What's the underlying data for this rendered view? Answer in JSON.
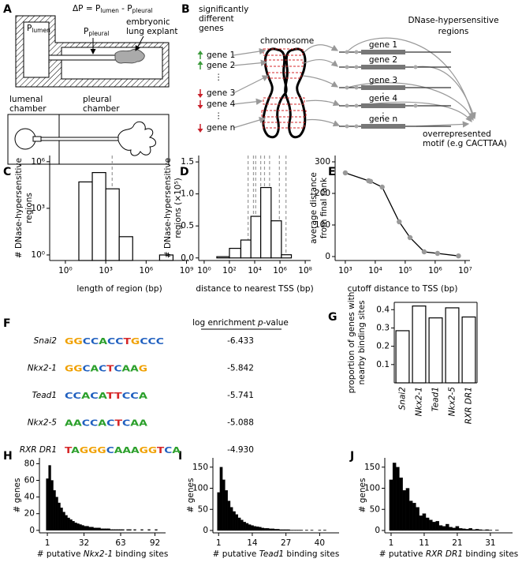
{
  "panel_labels": [
    "A",
    "B",
    "C",
    "D",
    "E",
    "F",
    "G",
    "H",
    "I",
    "J"
  ],
  "panel_a": {
    "equation": [
      "ΔP = P",
      "lumen",
      " - P",
      "pleural"
    ],
    "p_lumen": [
      "P",
      "lumen"
    ],
    "p_pleural": [
      "P",
      "pleural"
    ],
    "explant_label": [
      "embryonic",
      "lung explant"
    ],
    "lumenal_chamber": [
      "lumenal",
      "chamber"
    ],
    "pleural_chamber": [
      "pleural",
      "chamber"
    ]
  },
  "panel_b": {
    "genes_title": [
      "significantly",
      "different",
      "genes"
    ],
    "chromosome": "chromosome",
    "regions_title": [
      "DNase-hypersensitive",
      "regions"
    ],
    "genes": [
      {
        "label": "gene 1",
        "direction": "up"
      },
      {
        "label": "gene 2",
        "direction": "up"
      },
      {
        "label": "⋮",
        "direction": null
      },
      {
        "label": "gene 3",
        "direction": "down"
      },
      {
        "label": "gene 4",
        "direction": "down"
      },
      {
        "label": "⋮",
        "direction": null
      },
      {
        "label": "gene n",
        "direction": "down"
      }
    ],
    "up_color": "#3a9a3a",
    "down_color": "#c8202a",
    "gene_models": [
      "gene 1",
      "gene 2",
      "gene 3",
      "gene 4",
      "gene n"
    ],
    "motif_label": [
      "overrepresented",
      "motif (e.g CACTTAA)"
    ]
  },
  "panel_f": {
    "header": [
      "log enrichment ",
      "p",
      "-value"
    ],
    "base_colors": {
      "A": "#2ca02c",
      "C": "#1f5fbf",
      "G": "#f0a000",
      "T": "#d62728"
    },
    "rows": [
      {
        "motif": "Snai2",
        "logo": "GGCCACCTGCCC",
        "value": "-6.433"
      },
      {
        "motif": "Nkx2-1",
        "logo": "GGCACTCAAG",
        "value": "-5.842"
      },
      {
        "motif": "Tead1",
        "logo": "CCACATTCCA",
        "value": "-5.741"
      },
      {
        "motif": "Nkx2-5",
        "logo": "AACCACTCAA",
        "value": "-5.088"
      },
      {
        "motif": "RXR DR1",
        "logo": "TAGGGCAAAGGTCA",
        "value": "-4.930"
      }
    ]
  },
  "chart_data": [
    {
      "type": "histogram",
      "ylabel": [
        "# DNase-hypersensitive",
        "regions"
      ],
      "xlabel": "length of region (bp)",
      "xlog": true,
      "ylog": true,
      "xlim": [
        0.068,
        1600000000
      ],
      "ylim": [
        0.44,
        2500000
      ],
      "xticks": [
        {
          "value": 1,
          "label": "10⁰"
        },
        {
          "value": 1000,
          "label": "10³"
        },
        {
          "value": 1000000,
          "label": "10⁶"
        },
        {
          "value": 1000000000,
          "label": "10⁹"
        }
      ],
      "yticks": [
        {
          "value": 1,
          "label": "10⁰"
        },
        {
          "value": 1000,
          "label": "10³"
        },
        {
          "value": 1000000,
          "label": "10⁶"
        }
      ],
      "bins": [
        10,
        100,
        1000,
        10000,
        100000,
        1000000,
        10000000,
        100000000
      ],
      "values": [
        50000,
        200000,
        18000,
        15,
        0,
        0,
        1
      ],
      "dashed_lines": [
        3000
      ],
      "color": "#ffffff",
      "edgecolor": "#000000",
      "dash_color": "#999999"
    },
    {
      "type": "histogram",
      "ylabel": [
        "# DNase-hypersensitive",
        "regions (×10⁵)"
      ],
      "xlabel": "distance to nearest TSS (bp)",
      "xlog": true,
      "xlim": [
        0.37,
        270000000
      ],
      "ylim": [
        -0.04,
        1.6
      ],
      "xticks": [
        {
          "value": 1,
          "label": "10⁰"
        },
        {
          "value": 100,
          "label": "10²"
        },
        {
          "value": 10000,
          "label": "10⁴"
        },
        {
          "value": 1000000,
          "label": "10⁶"
        },
        {
          "value": 100000000,
          "label": "10⁸"
        }
      ],
      "yticks": [
        {
          "value": 0,
          "label": "0.0"
        },
        0.5,
        {
          "value": 1,
          "label": "1.0"
        },
        1.5
      ],
      "bins": [
        10,
        100,
        800,
        5000,
        30000,
        200000,
        1300000,
        8000000
      ],
      "values": [
        0.02,
        0.15,
        0.28,
        0.65,
        1.1,
        0.58,
        0.05
      ],
      "dashed_lines": [
        3000,
        8000,
        12000,
        30000,
        60000,
        150000,
        900000,
        3000000
      ],
      "color": "#ffffff",
      "edgecolor": "#000000",
      "dash_color": "#999999"
    },
    {
      "type": "line",
      "ylabel": [
        "average distance",
        "from final rank"
      ],
      "xlabel": "cutoff distance to TSS (bp)",
      "xlog": true,
      "xlim": [
        457,
        14500000
      ],
      "ylim": [
        -12.5,
        320
      ],
      "xticks": [
        {
          "value": 1000,
          "label": "10³"
        },
        {
          "value": 10000,
          "label": "10⁴"
        },
        {
          "value": 100000,
          "label": "10⁵"
        },
        {
          "value": 1000000,
          "label": "10⁶"
        },
        {
          "value": 10000000,
          "label": "10⁷"
        }
      ],
      "yticks": [
        0,
        100,
        200,
        300
      ],
      "x": [
        1000,
        6000,
        7000,
        17000,
        63000,
        145000,
        430000,
        1200000,
        6000000
      ],
      "values": [
        265,
        240,
        238,
        220,
        110,
        60,
        15,
        10,
        2
      ],
      "color": "#000000",
      "marker_color": "#999999"
    },
    {
      "type": "bar",
      "ylabel": [
        "proportion of genes with",
        "nearby binding sites"
      ],
      "categories": [
        "Snai2",
        "Nkx2-1",
        "Tead1",
        "Nkx2-5",
        "RXR DR1"
      ],
      "values": [
        0.285,
        0.42,
        0.355,
        0.41,
        0.36
      ],
      "ylim": [
        0,
        0.44
      ],
      "yticks": [
        0.1,
        0.2,
        0.3,
        0.4
      ],
      "color": "#ffffff",
      "edgecolor": "#000000"
    },
    {
      "type": "histogram",
      "ylabel": "# genes",
      "xlabel": [
        "# putative ",
        "Nkx2-1",
        " binding sites"
      ],
      "xlim": [
        -5.7,
        101
      ],
      "ylim": [
        -3,
        87
      ],
      "xticks": [
        1,
        32,
        63,
        92
      ],
      "yticks": [
        0,
        20,
        40,
        60,
        80
      ],
      "bins": [
        0,
        2,
        4,
        6,
        8,
        10,
        12,
        14,
        16,
        18,
        20,
        22,
        24,
        26,
        28,
        30,
        32,
        34,
        36,
        38,
        40,
        42,
        44,
        46,
        48,
        50,
        52,
        54,
        56,
        58,
        60,
        62,
        64,
        66,
        68,
        70,
        72,
        74,
        76,
        78,
        80,
        82,
        84,
        86,
        88,
        90,
        92,
        94
      ],
      "values": [
        62,
        78,
        60,
        48,
        40,
        33,
        27,
        22,
        18,
        15,
        13,
        11,
        9,
        8,
        7,
        6,
        5,
        5,
        4,
        4,
        3,
        3,
        3,
        2,
        2,
        2,
        2,
        1,
        1,
        1,
        1,
        1,
        1,
        0,
        1,
        1,
        0,
        1,
        0,
        0,
        1,
        0,
        0,
        1,
        0,
        0,
        1
      ],
      "color": "#000000"
    },
    {
      "type": "histogram",
      "ylabel": "# genes",
      "xlabel": [
        "# putative ",
        "Tead1",
        " binding sites"
      ],
      "xlim": [
        -1.2,
        47.5
      ],
      "ylim": [
        -5.6,
        172
      ],
      "xticks": [
        1,
        14,
        27,
        40
      ],
      "yticks": [
        0,
        50,
        100,
        150
      ],
      "bins": [
        0.5,
        1.5,
        2.5,
        3.5,
        4.5,
        5.5,
        6.5,
        7.5,
        8.5,
        9.5,
        10.5,
        11.5,
        12.5,
        13.5,
        14.5,
        15.5,
        16.5,
        17.5,
        18.5,
        19.5,
        20.5,
        21.5,
        22.5,
        23.5,
        24.5,
        25.5,
        26.5,
        27.5,
        28.5,
        29.5,
        30.5,
        31.5,
        32.5,
        33.5,
        34.5,
        35.5,
        36.5,
        37.5,
        38.5,
        39.5,
        40.5,
        41.5,
        42.5
      ],
      "values": [
        90,
        150,
        120,
        95,
        70,
        55,
        45,
        38,
        30,
        25,
        20,
        17,
        14,
        12,
        10,
        9,
        8,
        6,
        5,
        5,
        4,
        4,
        3,
        3,
        2,
        2,
        2,
        2,
        1,
        1,
        1,
        1,
        1,
        0,
        1,
        0,
        1,
        0,
        0,
        1,
        0,
        1
      ],
      "color": "#000000"
    },
    {
      "type": "histogram",
      "ylabel": "# genes",
      "xlabel": [
        "# putative ",
        "RXR DR1",
        " binding sites"
      ],
      "xlim": [
        -0.9,
        37.7
      ],
      "ylim": [
        -5.6,
        172
      ],
      "xticks": [
        1,
        11,
        21,
        31
      ],
      "yticks": [
        0,
        50,
        100,
        150
      ],
      "bins": [
        0.5,
        1.5,
        2.5,
        3.5,
        4.5,
        5.5,
        6.5,
        7.5,
        8.5,
        9.5,
        10.5,
        11.5,
        12.5,
        13.5,
        14.5,
        15.5,
        16.5,
        17.5,
        18.5,
        19.5,
        20.5,
        21.5,
        22.5,
        23.5,
        24.5,
        25.5,
        26.5,
        27.5,
        28.5,
        29.5,
        30.5,
        31.5,
        32.5,
        33.5
      ],
      "values": [
        120,
        160,
        150,
        125,
        95,
        100,
        70,
        65,
        55,
        35,
        40,
        30,
        25,
        20,
        22,
        12,
        10,
        15,
        8,
        6,
        10,
        5,
        4,
        3,
        5,
        2,
        3,
        2,
        1,
        2,
        1,
        0,
        1
      ],
      "color": "#000000"
    }
  ]
}
